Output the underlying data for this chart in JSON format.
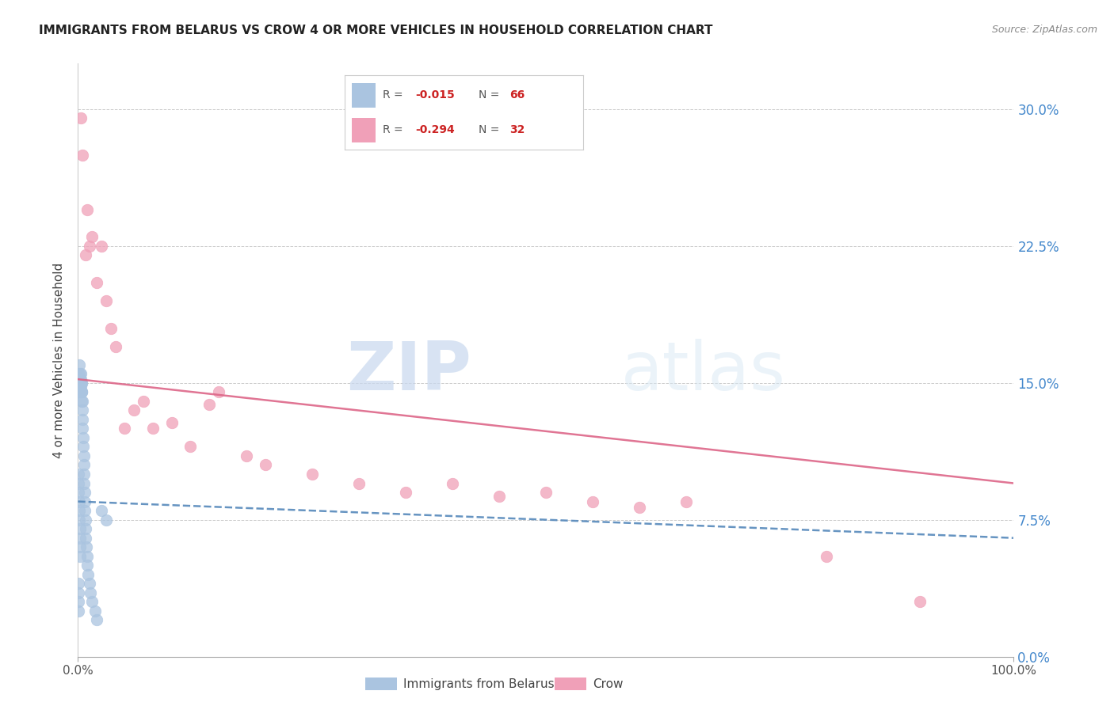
{
  "title": "IMMIGRANTS FROM BELARUS VS CROW 4 OR MORE VEHICLES IN HOUSEHOLD CORRELATION CHART",
  "source": "Source: ZipAtlas.com",
  "ylabel": "4 or more Vehicles in Household",
  "yticks": [
    0.0,
    7.5,
    15.0,
    22.5,
    30.0
  ],
  "ytick_labels": [
    "0.0%",
    "7.5%",
    "15.0%",
    "22.5%",
    "30.0%"
  ],
  "xlim": [
    0.0,
    100.0
  ],
  "ylim": [
    0.0,
    32.5
  ],
  "legend_blue_r": "-0.015",
  "legend_blue_n": "66",
  "legend_pink_r": "-0.294",
  "legend_pink_n": "32",
  "legend_label_blue": "Immigrants from Belarus",
  "legend_label_pink": "Crow",
  "blue_color": "#aac4e0",
  "pink_color": "#f0a0b8",
  "blue_line_color": "#5588bb",
  "pink_line_color": "#dd6688",
  "watermark_zip": "ZIP",
  "watermark_atlas": "atlas",
  "blue_scatter_x": [
    0.05,
    0.08,
    0.1,
    0.1,
    0.12,
    0.13,
    0.15,
    0.15,
    0.18,
    0.2,
    0.2,
    0.22,
    0.25,
    0.25,
    0.28,
    0.3,
    0.3,
    0.3,
    0.32,
    0.35,
    0.35,
    0.38,
    0.4,
    0.4,
    0.42,
    0.45,
    0.48,
    0.5,
    0.5,
    0.55,
    0.58,
    0.6,
    0.62,
    0.65,
    0.68,
    0.7,
    0.72,
    0.75,
    0.78,
    0.8,
    0.85,
    0.9,
    0.95,
    1.0,
    1.1,
    1.2,
    1.3,
    1.5,
    1.8,
    2.0,
    2.5,
    3.0,
    0.05,
    0.05,
    0.08,
    0.1,
    0.12,
    0.15,
    0.18,
    0.2,
    0.22,
    0.25,
    0.05,
    0.05,
    0.05,
    0.05
  ],
  "blue_scatter_y": [
    15.5,
    15.0,
    15.2,
    14.8,
    15.3,
    15.0,
    16.0,
    14.5,
    15.0,
    15.2,
    14.8,
    15.0,
    15.5,
    14.5,
    15.0,
    15.2,
    14.8,
    15.5,
    15.0,
    14.5,
    15.0,
    14.5,
    15.0,
    14.0,
    14.5,
    14.0,
    13.5,
    13.0,
    12.5,
    12.0,
    11.5,
    11.0,
    10.5,
    10.0,
    9.5,
    9.0,
    8.5,
    8.0,
    7.5,
    7.0,
    6.5,
    6.0,
    5.5,
    5.0,
    4.5,
    4.0,
    3.5,
    3.0,
    2.5,
    2.0,
    8.0,
    7.5,
    10.0,
    9.5,
    9.0,
    8.5,
    8.0,
    7.5,
    7.0,
    6.5,
    6.0,
    5.5,
    4.0,
    3.5,
    3.0,
    2.5
  ],
  "pink_scatter_x": [
    0.3,
    0.5,
    0.8,
    1.0,
    1.2,
    1.5,
    2.0,
    2.5,
    3.0,
    3.5,
    4.0,
    5.0,
    6.0,
    7.0,
    8.0,
    10.0,
    12.0,
    14.0,
    15.0,
    18.0,
    20.0,
    25.0,
    30.0,
    35.0,
    40.0,
    45.0,
    50.0,
    55.0,
    60.0,
    65.0,
    80.0,
    90.0
  ],
  "pink_scatter_y": [
    29.5,
    27.5,
    22.0,
    24.5,
    22.5,
    23.0,
    20.5,
    22.5,
    19.5,
    18.0,
    17.0,
    12.5,
    13.5,
    14.0,
    12.5,
    12.8,
    11.5,
    13.8,
    14.5,
    11.0,
    10.5,
    10.0,
    9.5,
    9.0,
    9.5,
    8.8,
    9.0,
    8.5,
    8.2,
    8.5,
    5.5,
    3.0
  ],
  "blue_line_y_start": 8.5,
  "blue_line_y_end": 6.5,
  "pink_line_y_start": 15.2,
  "pink_line_y_end": 9.5
}
